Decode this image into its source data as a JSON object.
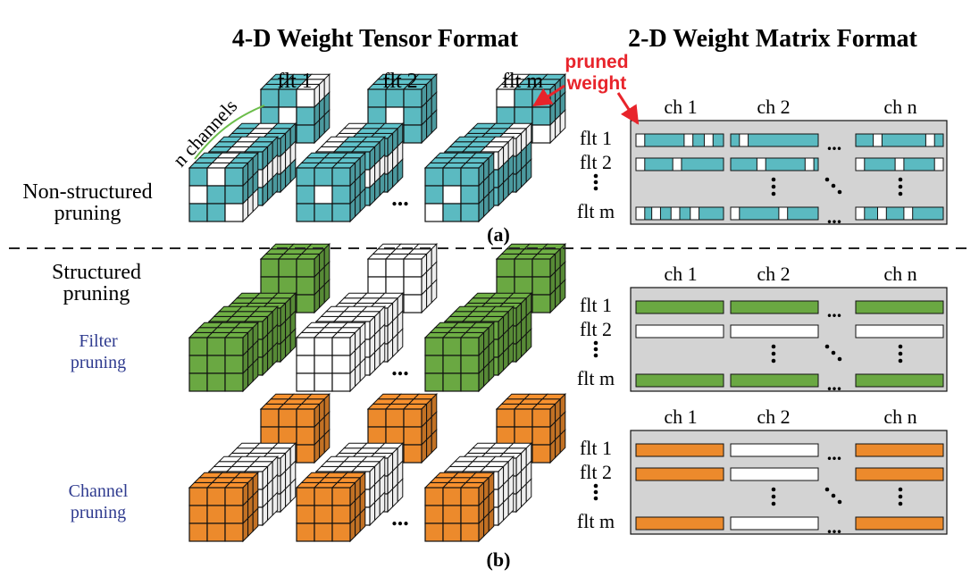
{
  "titles": {
    "left": "4-D Weight Tensor Format",
    "right": "2-D Weight Matrix Format"
  },
  "filter_labels": [
    "flt 1",
    "flt 2",
    "flt m"
  ],
  "channels_label": "n channels",
  "pruned_weight_label": [
    "pruned",
    "weight"
  ],
  "row_labels": [
    "flt 1",
    "flt 2",
    "flt m"
  ],
  "col_labels": [
    "ch 1",
    "ch 2",
    "ch n"
  ],
  "ellipsis": "...",
  "sections": {
    "a": {
      "caption": "(a)",
      "label_lines": [
        "Non-structured",
        "pruning"
      ]
    },
    "b": {
      "caption": "(b)",
      "label_lines": [
        "Structured",
        "pruning"
      ]
    },
    "filter": {
      "label_lines": [
        "Filter",
        "pruning"
      ]
    },
    "channel": {
      "label_lines": [
        "Channel",
        "pruning"
      ]
    }
  },
  "colors": {
    "teal": "#5bbac1",
    "green": "#6aa842",
    "orange": "#ec8a2c",
    "matrix_bg": "#d3d3d3",
    "accent_red": "#e8242b",
    "label_blue": "#2f3b8f",
    "channel_curve": "#6bbd4a"
  }
}
